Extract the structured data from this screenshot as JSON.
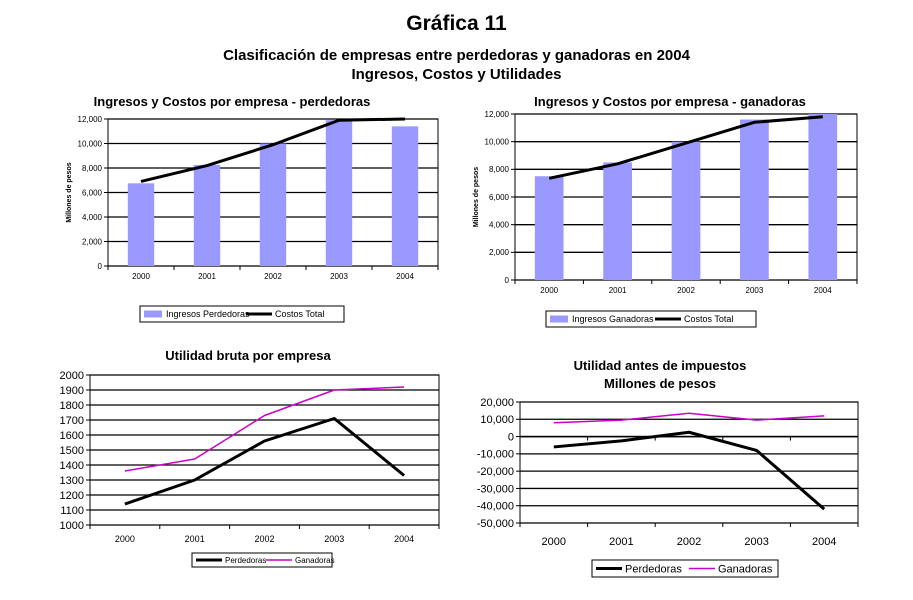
{
  "header": {
    "title": "Gráfica 11",
    "subtitle_line1": "Clasificación de empresas entre perdedoras y ganadoras en 2004",
    "subtitle_line2": "Ingresos, Costos y Utilidades"
  },
  "chart_data": [
    {
      "type": "bar",
      "title": "Ingresos y Costos por empresa -  perdedoras",
      "ylabel": "Millones de pesos",
      "xlabel": "",
      "categories": [
        "2000",
        "2001",
        "2002",
        "2003",
        "2004"
      ],
      "ylim": [
        0,
        12000
      ],
      "yticks": [
        0,
        2000,
        4000,
        6000,
        8000,
        10000,
        12000
      ],
      "ytick_labels": [
        "0",
        "2,000",
        "4,000",
        "6,000",
        "8,000",
        "10,000",
        "12,000"
      ],
      "grid": true,
      "series": [
        {
          "name": "Ingresos Perdedoras",
          "kind": "bar",
          "color": "#9999ff",
          "values": [
            6750,
            8250,
            10000,
            11900,
            11400
          ]
        },
        {
          "name": "Costos Total",
          "kind": "line",
          "color": "#000000",
          "values": [
            6900,
            8200,
            9900,
            11900,
            12000
          ]
        }
      ],
      "legend": "bottom"
    },
    {
      "type": "bar",
      "title": "Ingresos y Costos por empresa - ganadoras",
      "ylabel": "Millones de pesos",
      "xlabel": "",
      "categories": [
        "2000",
        "2001",
        "2002",
        "2003",
        "2004"
      ],
      "ylim": [
        0,
        12000
      ],
      "yticks": [
        0,
        2000,
        4000,
        6000,
        8000,
        10000,
        12000
      ],
      "ytick_labels": [
        "0",
        "2,000",
        "4,000",
        "6,000",
        "8,000",
        "10,000",
        "12,000"
      ],
      "grid": true,
      "series": [
        {
          "name": "Ingresos Ganadoras",
          "kind": "bar",
          "color": "#9999ff",
          "values": [
            7500,
            8500,
            10000,
            11600,
            12000
          ]
        },
        {
          "name": "Costos Total",
          "kind": "line",
          "color": "#000000",
          "values": [
            7350,
            8400,
            9900,
            11400,
            11800
          ]
        }
      ],
      "legend": "bottom"
    },
    {
      "type": "line",
      "title": "Utilidad bruta por empresa",
      "ylabel": "",
      "xlabel": "",
      "categories": [
        "2000",
        "2001",
        "2002",
        "2003",
        "2004"
      ],
      "ylim": [
        1000,
        2000
      ],
      "yticks": [
        1000,
        1100,
        1200,
        1300,
        1400,
        1500,
        1600,
        1700,
        1800,
        1900,
        2000
      ],
      "ytick_labels": [
        "1000",
        "1100",
        "1200",
        "1300",
        "1400",
        "1500",
        "1600",
        "1700",
        "1800",
        "1900",
        "2000"
      ],
      "grid": true,
      "series": [
        {
          "name": "Perdedoras",
          "kind": "line",
          "color": "#000000",
          "values": [
            1140,
            1300,
            1560,
            1710,
            1330
          ]
        },
        {
          "name": "Ganadoras",
          "kind": "line",
          "color": "#cc00cc",
          "values": [
            1360,
            1440,
            1730,
            1900,
            1920
          ]
        }
      ],
      "legend": "bottom"
    },
    {
      "type": "line",
      "title": "Utilidad antes de impuestos",
      "title_line2": "Millones de pesos",
      "ylabel": "",
      "xlabel": "",
      "categories": [
        "2000",
        "2001",
        "2002",
        "2003",
        "2004"
      ],
      "ylim": [
        -50000,
        20000
      ],
      "yticks": [
        -50000,
        -40000,
        -30000,
        -20000,
        -10000,
        0,
        10000,
        20000
      ],
      "ytick_labels": [
        "-50,000",
        "-40,000",
        "-30,000",
        "-20,000",
        "-10,000",
        "0",
        "10,000",
        "20,000"
      ],
      "grid": true,
      "series": [
        {
          "name": "Perdedoras",
          "kind": "line",
          "color": "#000000",
          "values": [
            -6000,
            -2500,
            2500,
            -8000,
            -42000
          ]
        },
        {
          "name": "Ganadoras",
          "kind": "line",
          "color": "#cc00cc",
          "values": [
            8000,
            9500,
            13500,
            9500,
            12000
          ]
        }
      ],
      "legend": "bottom"
    }
  ]
}
